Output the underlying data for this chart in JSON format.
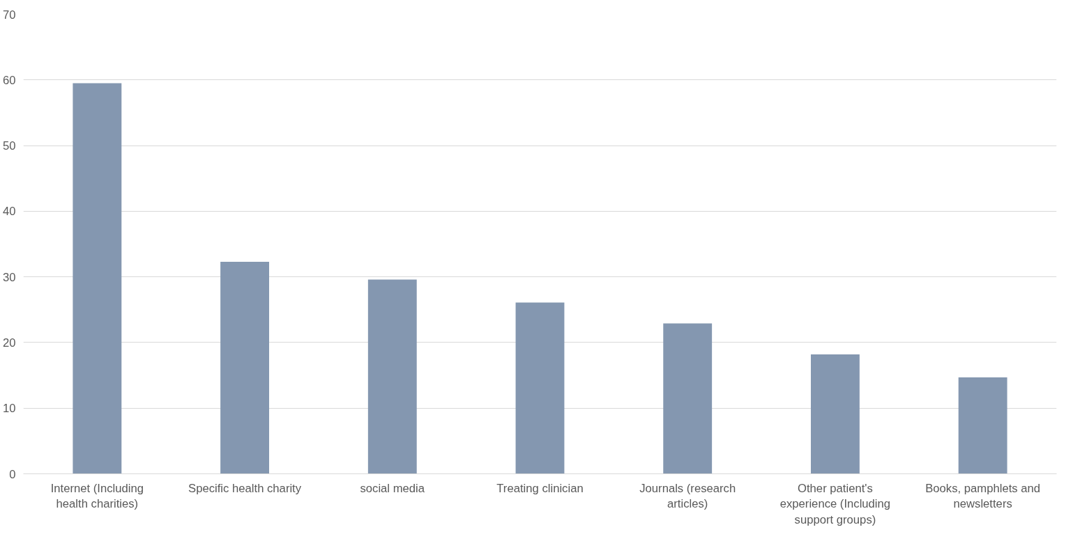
{
  "chart_data": {
    "type": "bar",
    "categories": [
      "Internet (Including health charities)",
      "Specific health charity",
      "social media",
      "Treating clinician",
      "Journals (research articles)",
      "Other patient's experience (Including support groups)",
      "Books, pamphlets and newsletters"
    ],
    "values": [
      59.5,
      32.3,
      29.6,
      26.1,
      22.9,
      18.2,
      14.7
    ],
    "color": "#8497b0",
    "ylim": [
      0,
      70
    ],
    "yticks": [
      0,
      10,
      20,
      30,
      40,
      50,
      60,
      70
    ],
    "grid": "y"
  }
}
